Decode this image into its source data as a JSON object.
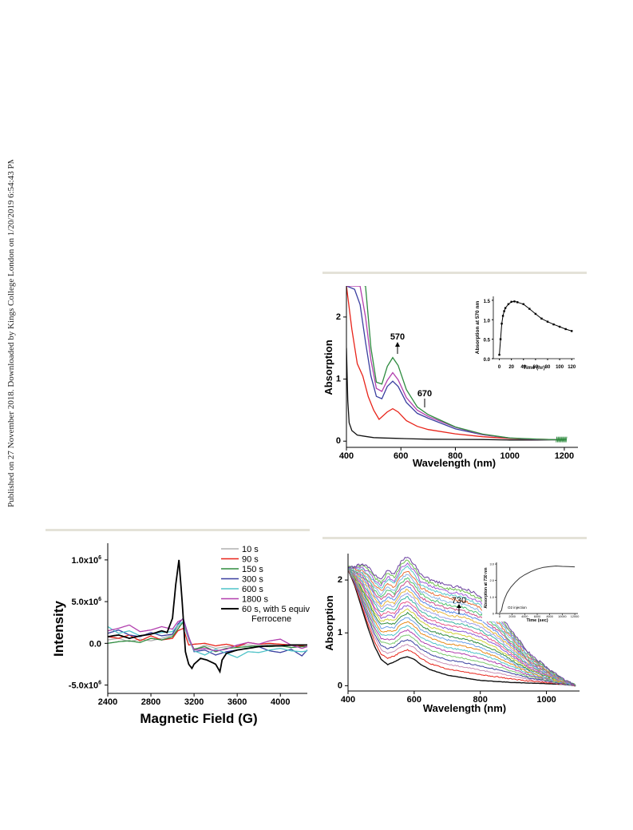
{
  "side_note": "Published on 27 November 2018. Downloaded by Kings College London on 1/20/2019 6:54:43 PM.",
  "colors": {
    "rule": "#e4e2d8"
  },
  "chart_data": [
    {
      "id": "chart_uv_a",
      "type": "line",
      "xlabel": "Wavelength (nm)",
      "ylabel": "Absorption",
      "xlim": [
        400,
        1250
      ],
      "ylim": [
        -0.1,
        2.5
      ],
      "x_ticks": [
        "400",
        "600",
        "800",
        "1000",
        "1200"
      ],
      "y_ticks": [
        "0",
        "1",
        "2"
      ],
      "annotations": [
        "570",
        "670"
      ],
      "series": [
        {
          "color": "#111111",
          "x": [
            400,
            405,
            410,
            420,
            440,
            470,
            500,
            540,
            580,
            620,
            700,
            800,
            900,
            1000,
            1100,
            1200
          ],
          "y": [
            1.5,
            0.65,
            0.3,
            0.17,
            0.1,
            0.075,
            0.06,
            0.05,
            0.045,
            0.04,
            0.035,
            0.03,
            0.025,
            0.02,
            0.02,
            0.02
          ]
        },
        {
          "color": "#e8241a",
          "x": [
            400,
            420,
            440,
            460,
            480,
            500,
            520,
            550,
            570,
            590,
            620,
            660,
            700,
            800,
            900,
            1000,
            1100,
            1200
          ],
          "y": [
            2.5,
            1.8,
            1.25,
            1.05,
            0.72,
            0.5,
            0.35,
            0.47,
            0.52,
            0.47,
            0.33,
            0.24,
            0.19,
            0.12,
            0.07,
            0.04,
            0.03,
            0.02
          ]
        },
        {
          "color": "#3a3fa0",
          "x": [
            400,
            430,
            450,
            470,
            490,
            510,
            530,
            550,
            570,
            590,
            620,
            660,
            700,
            800,
            900,
            1000,
            1100,
            1200
          ],
          "y": [
            2.5,
            2.45,
            2.2,
            1.6,
            1.05,
            0.72,
            0.68,
            0.88,
            0.97,
            0.88,
            0.62,
            0.45,
            0.37,
            0.2,
            0.1,
            0.05,
            0.03,
            0.02
          ]
        },
        {
          "color": "#b23fae",
          "x": [
            400,
            450,
            470,
            490,
            510,
            530,
            550,
            570,
            590,
            620,
            660,
            700,
            800,
            900,
            1000,
            1100,
            1200
          ],
          "y": [
            2.5,
            2.5,
            2.0,
            1.3,
            0.85,
            0.8,
            0.98,
            1.1,
            0.99,
            0.7,
            0.5,
            0.4,
            0.22,
            0.11,
            0.05,
            0.03,
            0.02
          ]
        },
        {
          "color": "#2e8b3f",
          "x": [
            400,
            470,
            480,
            490,
            510,
            530,
            550,
            570,
            590,
            620,
            660,
            700,
            800,
            900,
            1000,
            1100,
            1200
          ],
          "y": [
            2.6,
            2.5,
            2.0,
            1.5,
            0.95,
            0.92,
            1.2,
            1.35,
            1.22,
            0.83,
            0.55,
            0.43,
            0.23,
            0.11,
            0.05,
            0.03,
            0.02
          ]
        }
      ],
      "inset": {
        "type": "line",
        "xlabel": "Time (hr)",
        "ylabel": "Absorption at 570 nm",
        "xlim": [
          -10,
          125
        ],
        "ylim": [
          0,
          1.6
        ],
        "x_ticks": [
          "0",
          "20",
          "40",
          "60",
          "80",
          "100",
          "120"
        ],
        "y_ticks": [
          "0.0",
          "0.5",
          "1.0",
          "1.5"
        ],
        "x": [
          0,
          2,
          4,
          6,
          8,
          10,
          15,
          20,
          25,
          30,
          40,
          50,
          60,
          70,
          80,
          90,
          100,
          110,
          120
        ],
        "y": [
          0.1,
          0.5,
          0.9,
          1.1,
          1.22,
          1.3,
          1.4,
          1.46,
          1.47,
          1.45,
          1.4,
          1.28,
          1.15,
          1.03,
          0.95,
          0.88,
          0.82,
          0.76,
          0.71
        ]
      }
    },
    {
      "id": "chart_epr",
      "type": "line",
      "xlabel": "Magnetic Field (G)",
      "ylabel": "Intensity",
      "xlim": [
        2400,
        4250
      ],
      "ylim": [
        -600000,
        1200000
      ],
      "x_ticks": [
        "2400",
        "2800",
        "3200",
        "3600",
        "4000"
      ],
      "y_ticks": [
        "1.0x10",
        "5.0x10",
        "0.0",
        "-5.0x10"
      ],
      "y_tick_exponent": "6",
      "legend_position": "top-right",
      "series": [
        {
          "name": "10 s",
          "color": "#b0b0b0",
          "x": [
            2400,
            2500,
            2600,
            2700,
            2800,
            2900,
            3000,
            3050,
            3100,
            3150,
            3200,
            3300,
            3400,
            3500,
            3600,
            3700,
            3800,
            3900,
            4000,
            4100,
            4200,
            4250
          ],
          "y": [
            40000,
            60000,
            20000,
            50000,
            30000,
            60000,
            100000,
            200000,
            240000,
            40000,
            -80000,
            -20000,
            -60000,
            -40000,
            -30000,
            -20000,
            -30000,
            -10000,
            -20000,
            -30000,
            -20000,
            -20000
          ]
        },
        {
          "name": "90 s",
          "color": "#e8241a",
          "x": [
            2400,
            2500,
            2600,
            2700,
            2800,
            2900,
            3000,
            3050,
            3100,
            3150,
            3200,
            3300,
            3400,
            3500,
            3600,
            3700,
            3800,
            3900,
            4000,
            4100,
            4200,
            4250
          ],
          "y": [
            80000,
            60000,
            100000,
            30000,
            90000,
            40000,
            60000,
            150000,
            180000,
            -20000,
            -10000,
            0,
            -30000,
            -10000,
            -40000,
            10000,
            -10000,
            0,
            -10000,
            -20000,
            -30000,
            -20000
          ]
        },
        {
          "name": "150 s",
          "color": "#2e8b3f",
          "x": [
            2400,
            2500,
            2600,
            2700,
            2800,
            2900,
            3000,
            3050,
            3100,
            3150,
            3200,
            3300,
            3400,
            3500,
            3600,
            3700,
            3800,
            3900,
            4000,
            4100,
            4200,
            4250
          ],
          "y": [
            0,
            20000,
            30000,
            10000,
            60000,
            40000,
            80000,
            170000,
            260000,
            60000,
            -70000,
            -40000,
            -100000,
            -60000,
            -50000,
            -40000,
            -30000,
            -40000,
            -30000,
            -50000,
            -40000,
            -40000
          ]
        },
        {
          "name": "300 s",
          "color": "#3a3fa0",
          "x": [
            2400,
            2500,
            2600,
            2700,
            2800,
            2900,
            3000,
            3050,
            3100,
            3150,
            3200,
            3300,
            3400,
            3500,
            3600,
            3700,
            3800,
            3900,
            4000,
            4100,
            4200,
            4250
          ],
          "y": [
            120000,
            160000,
            100000,
            80000,
            130000,
            90000,
            110000,
            230000,
            300000,
            80000,
            -100000,
            -80000,
            -140000,
            -100000,
            -80000,
            -60000,
            -40000,
            -90000,
            -110000,
            -70000,
            -150000,
            -80000
          ]
        },
        {
          "name": "600 s",
          "color": "#4fc3c8",
          "x": [
            2400,
            2500,
            2600,
            2700,
            2800,
            2900,
            3000,
            3050,
            3100,
            3150,
            3200,
            3300,
            3400,
            3500,
            3600,
            3700,
            3800,
            3900,
            4000,
            4100,
            4200,
            4250
          ],
          "y": [
            200000,
            120000,
            150000,
            90000,
            110000,
            130000,
            140000,
            220000,
            260000,
            50000,
            -90000,
            -140000,
            -70000,
            -120000,
            -170000,
            -100000,
            -110000,
            -80000,
            -60000,
            -90000,
            -100000,
            -90000
          ]
        },
        {
          "name": "1800 s",
          "color": "#b23fae",
          "x": [
            2400,
            2500,
            2600,
            2700,
            2800,
            2900,
            3000,
            3050,
            3100,
            3150,
            3200,
            3300,
            3400,
            3500,
            3600,
            3700,
            3800,
            3900,
            4000,
            4100,
            4200,
            4250
          ],
          "y": [
            150000,
            180000,
            220000,
            140000,
            160000,
            200000,
            170000,
            260000,
            290000,
            70000,
            -80000,
            -60000,
            -90000,
            -70000,
            -20000,
            10000,
            -10000,
            30000,
            50000,
            -20000,
            -60000,
            -40000
          ]
        },
        {
          "name": "60 s, with 5 equiv Ferrocene",
          "color": "#000000",
          "x": [
            2400,
            2500,
            2600,
            2700,
            2800,
            2900,
            2950,
            3000,
            3030,
            3060,
            3090,
            3120,
            3150,
            3180,
            3200,
            3260,
            3320,
            3400,
            3440,
            3460,
            3500,
            3600,
            3700,
            3800,
            3900,
            4000,
            4100,
            4200,
            4250
          ],
          "y": [
            80000,
            100000,
            60000,
            90000,
            110000,
            150000,
            130000,
            300000,
            700000,
            1000000,
            500000,
            -100000,
            -250000,
            -300000,
            -250000,
            -180000,
            -200000,
            -250000,
            -340000,
            -200000,
            -120000,
            -80000,
            -60000,
            -40000,
            -30000,
            -30000,
            -20000,
            -20000,
            -20000
          ]
        }
      ]
    },
    {
      "id": "chart_uv_b",
      "type": "line",
      "xlabel": "Wavelength (nm)",
      "ylabel": "Absorption",
      "xlim": [
        400,
        1100
      ],
      "ylim": [
        -0.1,
        2.5
      ],
      "x_ticks": [
        "400",
        "600",
        "800",
        "1000"
      ],
      "y_ticks": [
        "0",
        "1",
        "2"
      ],
      "annotations": [
        "730"
      ],
      "series_count": 25,
      "series_first": {
        "color": "#111111",
        "x": [
          400,
          420,
          440,
          460,
          480,
          500,
          520,
          540,
          560,
          580,
          600,
          620,
          650,
          700,
          800,
          900,
          1000,
          1060,
          1090
        ],
        "y": [
          2.2,
          1.9,
          1.5,
          1.1,
          0.75,
          0.5,
          0.4,
          0.45,
          0.52,
          0.55,
          0.5,
          0.4,
          0.3,
          0.2,
          0.1,
          0.06,
          0.04,
          0.02,
          0.0
        ]
      },
      "series_last": {
        "color": "#6b3fa0",
        "x": [
          400,
          420,
          440,
          460,
          480,
          500,
          520,
          540,
          560,
          580,
          600,
          620,
          650,
          700,
          750,
          800,
          850,
          900,
          950,
          1000,
          1050,
          1090
        ],
        "y": [
          2.25,
          2.25,
          2.3,
          2.25,
          2.1,
          2.0,
          2.2,
          2.1,
          2.35,
          2.45,
          2.3,
          2.1,
          2.0,
          1.9,
          1.85,
          1.7,
          1.4,
          1.0,
          0.6,
          0.35,
          0.12,
          0.0
        ]
      },
      "inset": {
        "type": "line",
        "xlabel": "Time (sec)",
        "ylabel": "Absorption at 730 nm",
        "annotation": "O2 injection",
        "xlim": [
          -500,
          12500
        ],
        "ylim": [
          0,
          3.1
        ],
        "x_ticks": [
          "0",
          "2000",
          "4000",
          "6000",
          "8000",
          "10000",
          "12000"
        ],
        "y_ticks": [
          "0",
          "1.0",
          "2.0",
          "3.0"
        ],
        "x": [
          0,
          300,
          500,
          800,
          1200,
          1800,
          2500,
          3200,
          4000,
          5000,
          6000,
          7000,
          8000,
          9000,
          10000,
          11000,
          12000
        ],
        "y": [
          0.05,
          0.2,
          0.55,
          0.9,
          1.25,
          1.6,
          1.9,
          2.15,
          2.35,
          2.55,
          2.7,
          2.8,
          2.85,
          2.88,
          2.86,
          2.85,
          2.83
        ]
      }
    }
  ]
}
